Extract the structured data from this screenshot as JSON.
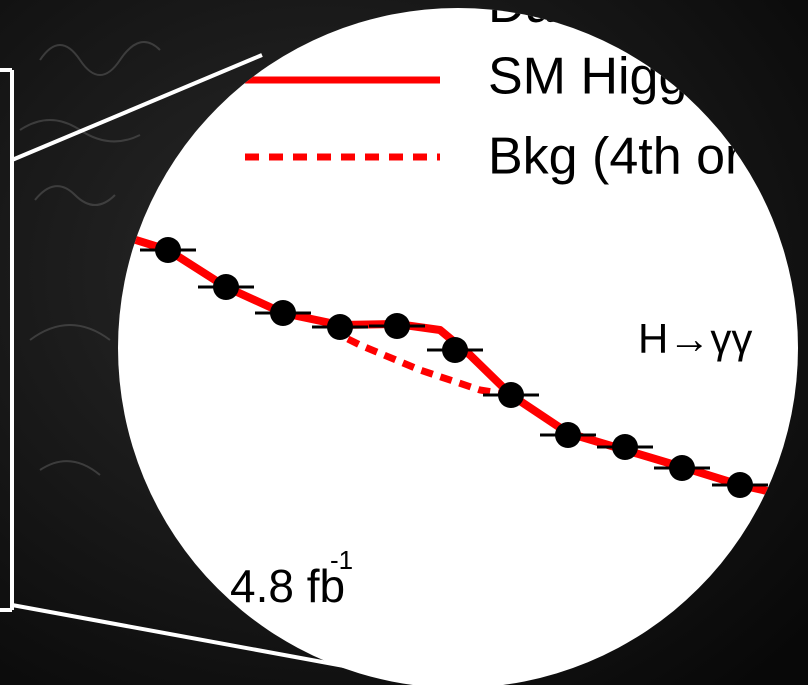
{
  "legend": {
    "entries": [
      {
        "label": "Dat"
      },
      {
        "label": "SM Higg"
      },
      {
        "label": "Bkg (4th or"
      }
    ]
  },
  "annotations": {
    "channel": "H→γγ",
    "luminosity": "4.8 fb",
    "luminosity_exponent": "-1"
  }
}
